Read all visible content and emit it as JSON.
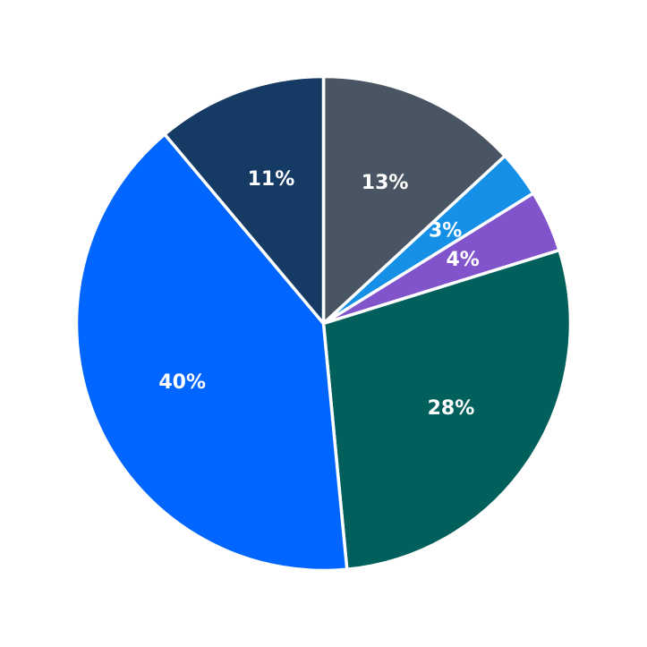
{
  "chart_data": {
    "type": "pie",
    "title": "",
    "start": "top",
    "direction": "clockwise",
    "slices": [
      {
        "value": 13,
        "label": "13%",
        "color": "#4a5563"
      },
      {
        "value": 3,
        "label": "3%",
        "color": "#1590e6"
      },
      {
        "value": 4,
        "label": "4%",
        "color": "#8254cc"
      },
      {
        "value": 28,
        "label": "28%",
        "color": "#02605c"
      },
      {
        "value": 40,
        "label": "40%",
        "color": "#0066ff"
      },
      {
        "value": 11,
        "label": "11%",
        "color": "#153a63"
      }
    ]
  }
}
